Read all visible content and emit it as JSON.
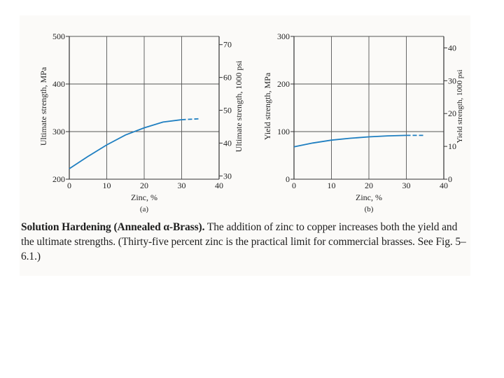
{
  "chart_data": [
    {
      "type": "line",
      "panel_label": "(a)",
      "xlabel": "Zinc, %",
      "ylabel": "Ultimate strength, MPa",
      "y2label": "Ultimate strength, 1000 psi",
      "xlim": [
        0,
        40
      ],
      "ylim": [
        200,
        500
      ],
      "y2lim": [
        29,
        72.5
      ],
      "x_ticks": [
        "0",
        "10",
        "20",
        "30",
        "40"
      ],
      "y_ticks": [
        "200",
        "300",
        "400",
        "500"
      ],
      "y2_ticks": [
        "30",
        "40",
        "50",
        "60",
        "70"
      ],
      "grid": true,
      "series": [
        {
          "x": [
            0,
            5,
            10,
            15,
            20,
            25,
            30,
            35
          ],
          "y": [
            222,
            248,
            272,
            293,
            308,
            320,
            325,
            327
          ],
          "dashed_from_x": 30
        }
      ]
    },
    {
      "type": "line",
      "panel_label": "(b)",
      "xlabel": "Zinc, %",
      "ylabel": "Yield strength, MPa",
      "y2label": "Yield strength, 1000 psi",
      "xlim": [
        0,
        40
      ],
      "ylim": [
        0,
        300
      ],
      "y2lim": [
        0,
        43.5
      ],
      "x_ticks": [
        "0",
        "10",
        "20",
        "30",
        "40"
      ],
      "y_ticks": [
        "0",
        "100",
        "200",
        "300"
      ],
      "y2_ticks": [
        "0",
        "10",
        "20",
        "30",
        "40"
      ],
      "grid": true,
      "series": [
        {
          "x": [
            0,
            5,
            10,
            15,
            20,
            25,
            30,
            35
          ],
          "y": [
            68,
            76,
            82,
            86,
            89,
            91,
            92,
            92
          ],
          "dashed_from_x": 30
        }
      ]
    }
  ],
  "caption": {
    "bold": "Solution Hardening (Annealed α-Brass).",
    "text": " The addition of zinc to copper increases both the yield and the ultimate strengths. (Thirty-five percent zinc is the practical limit for commercial brasses. See Fig. 5–6.1.)"
  },
  "colors": {
    "curve": "#1f7fc1",
    "grid": "#555555",
    "text": "#222222"
  }
}
